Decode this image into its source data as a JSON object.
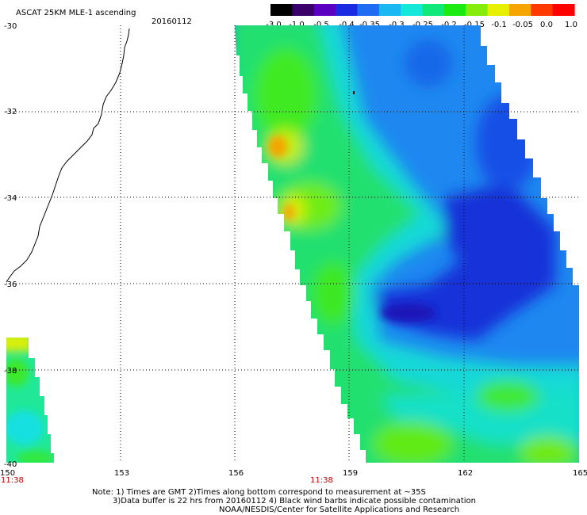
{
  "title": "ASCAT 25KM MLE-1 ascending",
  "date": "20160112",
  "colorbar": {
    "labels": [
      "-3.0",
      "-1.0",
      "-0.5",
      "-0.4",
      "-0.35",
      "-0.3",
      "-0.25",
      "-0.2",
      "-0.15",
      "-0.1",
      "-0.05",
      "0.0",
      "1.0"
    ],
    "colors": [
      "#000000",
      "#3a006a",
      "#5a00c0",
      "#1a2ae0",
      "#1e6cf2",
      "#1ab8f2",
      "#14e8d8",
      "#10e87a",
      "#1cea10",
      "#86ec0c",
      "#e6f000",
      "#f5a400",
      "#ff3a00",
      "#ff0000"
    ]
  },
  "lat_labels": [
    "-30",
    "-32",
    "-34",
    "-36",
    "-38",
    "-40"
  ],
  "lon_labels": [
    "150",
    "153",
    "156",
    "159",
    "162",
    "165"
  ],
  "time_labels": [
    "11:38",
    "11:38"
  ],
  "notes": {
    "line1": "Note: 1) Times are GMT 2)Times along bottom correspond to measurement at ~35S",
    "line2": "3)Data buffer is 22 hrs from 20160112 4) Black wind barbs indicate possible contamination",
    "line3": "NOAA/NESDIS/Center for Satellite Applications and Research"
  },
  "map": {
    "lat_range": [
      -40,
      -30
    ],
    "lon_range": [
      150,
      165
    ],
    "grid": "dotted",
    "swaths": [
      {
        "name": "main ascending swath",
        "value_range": [
          "-0.5",
          "0.0"
        ]
      },
      {
        "name": "partial western swath",
        "value_range": [
          "-0.3",
          "-0.05"
        ]
      }
    ]
  }
}
